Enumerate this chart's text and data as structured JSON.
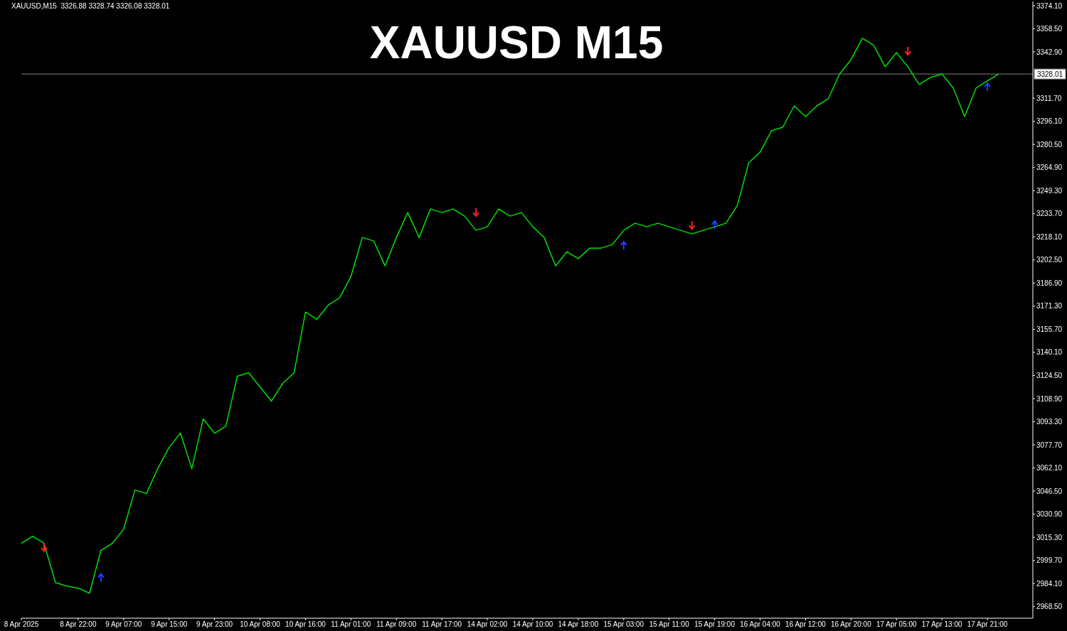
{
  "chart_data": {
    "type": "line",
    "title": "XAUUSD M15",
    "annotations": [
      "XAUUSD,M15  3326.88 3328.74 3326.08 3328.01"
    ],
    "categories": [
      "8 Apr 2025",
      null,
      null,
      null,
      null,
      "8 Apr 22:00",
      null,
      null,
      null,
      "9 Apr 07:00",
      null,
      null,
      null,
      "9 Apr 15:00",
      null,
      null,
      null,
      "9 Apr 23:00",
      null,
      null,
      null,
      "10 Apr 08:00",
      null,
      null,
      null,
      "10 Apr 16:00",
      null,
      null,
      null,
      "11 Apr 01:00",
      null,
      null,
      null,
      "11 Apr 09:00",
      null,
      null,
      null,
      "11 Apr 17:00",
      null,
      null,
      null,
      "14 Apr 02:00",
      null,
      null,
      null,
      "14 Apr 10:00",
      null,
      null,
      null,
      "14 Apr 18:00",
      null,
      null,
      null,
      "15 Apr 03:00",
      null,
      null,
      null,
      "15 Apr 11:00",
      null,
      null,
      null,
      "15 Apr 19:00",
      null,
      null,
      null,
      "16 Apr 04:00",
      null,
      null,
      null,
      "16 Apr 12:00",
      null,
      null,
      null,
      "16 Apr 20:00",
      null,
      null,
      null,
      "17 Apr 05:00",
      null,
      null,
      null,
      "17 Apr 13:00",
      null,
      null,
      null,
      "17 Apr 21:00",
      null
    ],
    "series": [
      {
        "color": "#00e000",
        "values": [
          3011.2,
          3016.0,
          3011.2,
          2984.8,
          2982.4,
          2981.0,
          2977.6,
          3006.4,
          3011.2,
          3020.8,
          3047.2,
          3044.8,
          3061.6,
          3076.0,
          3085.6,
          3061.6,
          3095.2,
          3085.6,
          3090.4,
          3124.0,
          3126.4,
          3116.8,
          3107.2,
          3119.2,
          3126.4,
          3167.3,
          3162.4,
          3172.0,
          3176.9,
          3191.3,
          3217.7,
          3215.3,
          3198.5,
          3217.7,
          3234.5,
          3217.7,
          3236.9,
          3234.5,
          3236.9,
          3232.1,
          3222.5,
          3224.9,
          3236.9,
          3232.1,
          3234.5,
          3224.9,
          3217.7,
          3198.5,
          3208.1,
          3203.3,
          3210.5,
          3210.5,
          3212.9,
          3222.5,
          3227.3,
          3224.9,
          3227.3,
          3224.9,
          3222.5,
          3220.1,
          3222.5,
          3224.9,
          3227.3,
          3239.3,
          3268.1,
          3275.3,
          3289.7,
          3292.1,
          3306.5,
          3299.3,
          3306.5,
          3311.3,
          3328.1,
          3337.7,
          3352.1,
          3347.3,
          3332.9,
          3342.5,
          3332.9,
          3320.9,
          3325.7,
          3328.1,
          3318.5,
          3299.3,
          3318.5,
          3323.3,
          3328.01
        ]
      },
      {
        "type": "scatter",
        "color": "#ff2020",
        "marker": "cross",
        "values": [
          null,
          null,
          3008.3,
          null,
          null,
          null,
          null,
          null,
          null,
          null,
          null,
          null,
          null,
          null,
          null,
          null,
          null,
          null,
          null,
          null,
          null,
          null,
          null,
          null,
          null,
          null,
          null,
          null,
          null,
          null,
          null,
          null,
          null,
          null,
          null,
          null,
          null,
          null,
          null,
          null,
          3234.5,
          null,
          null,
          null,
          null,
          null,
          null,
          null,
          null,
          null,
          null,
          null,
          null,
          null,
          null,
          null,
          null,
          null,
          null,
          3225.8,
          null,
          null,
          null,
          null,
          null,
          null,
          null,
          null,
          null,
          null,
          null,
          null,
          null,
          null,
          null,
          null,
          null,
          null,
          3343.4,
          null,
          null,
          null,
          null,
          null,
          null,
          null,
          null
        ]
      },
      {
        "type": "scatter",
        "color": "#2040ff",
        "marker": "cross",
        "values": [
          null,
          null,
          null,
          null,
          null,
          null,
          null,
          2988.2,
          null,
          null,
          null,
          null,
          null,
          null,
          null,
          null,
          null,
          null,
          null,
          null,
          null,
          null,
          null,
          null,
          null,
          null,
          null,
          null,
          null,
          null,
          null,
          null,
          null,
          null,
          null,
          null,
          null,
          null,
          null,
          null,
          null,
          null,
          null,
          null,
          null,
          null,
          null,
          null,
          null,
          null,
          null,
          null,
          null,
          3212.4,
          null,
          null,
          null,
          null,
          null,
          null,
          null,
          3226.3,
          null,
          null,
          null,
          null,
          null,
          null,
          null,
          null,
          null,
          null,
          null,
          null,
          null,
          null,
          null,
          null,
          null,
          null,
          null,
          null,
          null,
          null,
          null,
          3319.4,
          null
        ]
      }
    ],
    "ylim": [
      2960.7,
      3377.0
    ],
    "yticks": [
      {
        "value": 2968.5,
        "label": "2968.50"
      },
      {
        "value": 2984.1,
        "label": "2984.10"
      },
      {
        "value": 2999.7,
        "label": "2999.70"
      },
      {
        "value": 3015.3,
        "label": "3015.30"
      },
      {
        "value": 3030.9,
        "label": "3030.90"
      },
      {
        "value": 3046.5,
        "label": "3046.50"
      },
      {
        "value": 3062.1,
        "label": "3062.10"
      },
      {
        "value": 3077.7,
        "label": "3077.70"
      },
      {
        "value": 3093.3,
        "label": "3093.30"
      },
      {
        "value": 3108.9,
        "label": "3108.90"
      },
      {
        "value": 3124.5,
        "label": "3124.50"
      },
      {
        "value": 3140.1,
        "label": "3140.10"
      },
      {
        "value": 3155.7,
        "label": "3155.70"
      },
      {
        "value": 3171.3,
        "label": "3171.30"
      },
      {
        "value": 3186.9,
        "label": "3186.90"
      },
      {
        "value": 3202.5,
        "label": "3202.50"
      },
      {
        "value": 3218.1,
        "label": "3218.10"
      },
      {
        "value": 3233.7,
        "label": "3233.70"
      },
      {
        "value": 3249.3,
        "label": "3249.30"
      },
      {
        "value": 3264.9,
        "label": "3264.90"
      },
      {
        "value": 3280.5,
        "label": "3280.50"
      },
      {
        "value": 3296.1,
        "label": "3296.10"
      },
      {
        "value": 3311.7,
        "label": "3311.70"
      },
      {
        "value": 3342.9,
        "label": "3342.90"
      },
      {
        "value": 3358.5,
        "label": "3358.50"
      },
      {
        "value": 3374.1,
        "label": "3374.10"
      }
    ],
    "ref_lines": [
      {
        "axis": "y",
        "value": 3328.01,
        "label": "3328.01",
        "color": "#808080"
      }
    ],
    "grid": false,
    "marker": "none",
    "line_style": "solid"
  }
}
